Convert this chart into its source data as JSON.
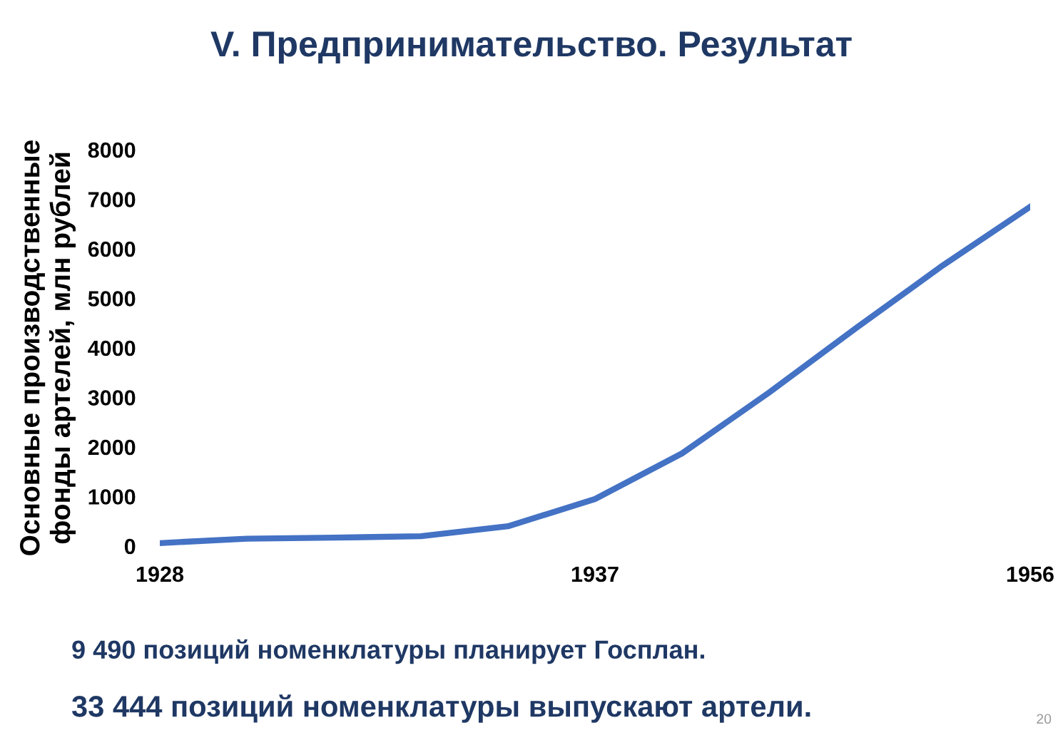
{
  "chart_data": {
    "type": "line",
    "title": "V. Предпринимательство. Результат",
    "ylabel": "Основные производственные\nфонды артелей, млн рублей",
    "categories": [
      "1928",
      null,
      null,
      null,
      null,
      "1937",
      null,
      null,
      null,
      null,
      "1956"
    ],
    "series": [
      {
        "color": "#4472c4",
        "values": [
          60,
          150,
          170,
          200,
          400,
          950,
          1870,
          3100,
          4400,
          5670,
          6850
        ]
      }
    ],
    "ylim": [
      0,
      8000
    ],
    "yticks": [
      0,
      1000,
      2000,
      3000,
      4000,
      5000,
      6000,
      7000,
      8000
    ],
    "grid": false,
    "legend": false,
    "marker": "none",
    "line_style": "solid",
    "annotations": [
      "9 490 позиций номенклатуры планирует Госплан.",
      "33 444 позиций номенклатуры выпускают артели.",
      "20"
    ]
  }
}
